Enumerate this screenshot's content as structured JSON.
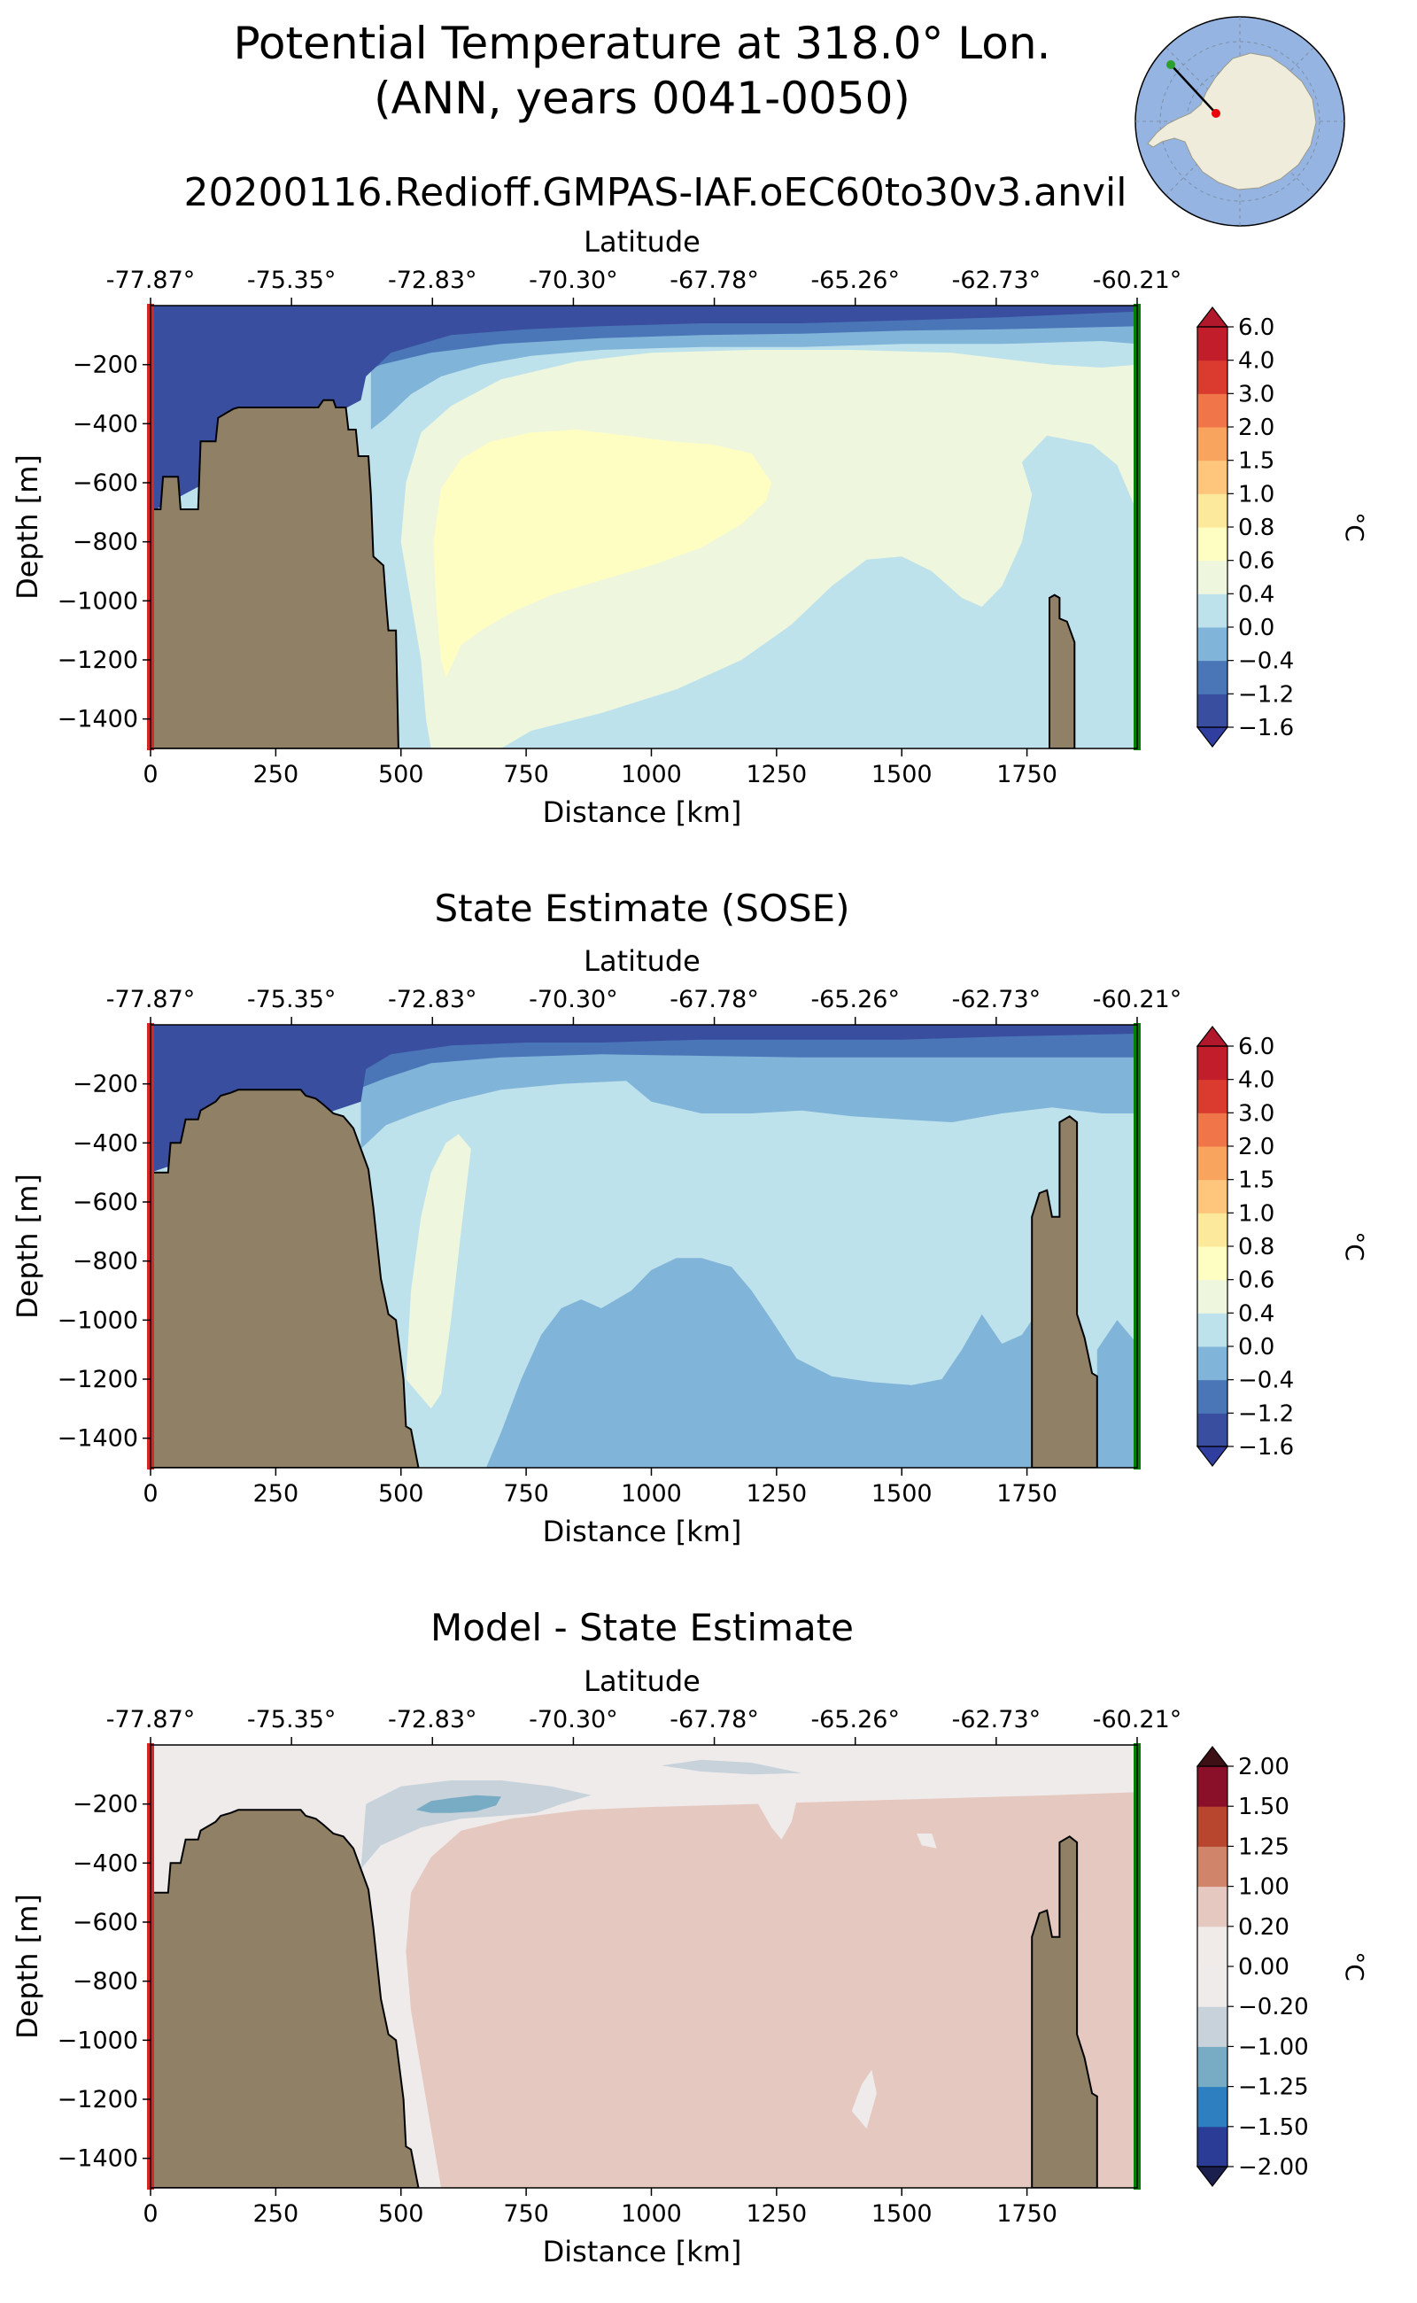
{
  "figure": {
    "title_line1": "Potential Temperature at 318.0° Lon.",
    "title_line2": "(ANN, years 0041-0050)",
    "run_name": "20200116.Redioff.GMPAS-IAF.oEC60to30v3.anvil"
  },
  "inset_map": {
    "region": "Antarctica",
    "projection": "south polar stereographic",
    "start_marker_color": "#2ca02c",
    "end_marker_color": "#e8000b"
  },
  "colors": {
    "land": "#8f8066",
    "left_edge": "#d62728",
    "right_edge": "#008000"
  },
  "chart_data": [
    {
      "type": "contourf",
      "title": "",
      "top_axis_label": "Latitude",
      "top_ticks": [
        "-77.87°",
        "-75.35°",
        "-72.83°",
        "-70.30°",
        "-67.78°",
        "-65.26°",
        "-62.73°",
        "-60.21°"
      ],
      "xlabel": "Distance [km]",
      "ylabel": "Depth [m]",
      "x_ticks": [
        0,
        250,
        500,
        750,
        1000,
        1250,
        1500,
        1750
      ],
      "y_ticks": [
        -200,
        -400,
        -600,
        -800,
        -1000,
        -1200,
        -1400
      ],
      "xlim": [
        0,
        1970
      ],
      "ylim": [
        -1500,
        0
      ],
      "colorbar": {
        "label": "°C",
        "levels": [
          "-1.6",
          "-1.2",
          "-0.4",
          "0.0",
          "0.4",
          "0.6",
          "0.8",
          "1.0",
          "1.5",
          "2.0",
          "3.0",
          "4.0",
          "6.0"
        ],
        "colors": [
          "#3a4ea0",
          "#4a76b8",
          "#80b4d8",
          "#bee2ec",
          "#eef6de",
          "#fffec2",
          "#fde99b",
          "#fdc67c",
          "#f9a45e",
          "#f07548",
          "#da3b2e",
          "#c11d2b"
        ],
        "under_color": "#303f9f",
        "over_color": "#b2182b"
      },
      "bottom_topography_km_m": [
        [
          0,
          -690
        ],
        [
          20,
          -690
        ],
        [
          25,
          -580
        ],
        [
          55,
          -580
        ],
        [
          60,
          -690
        ],
        [
          95,
          -690
        ],
        [
          100,
          -460
        ],
        [
          130,
          -460
        ],
        [
          135,
          -380
        ],
        [
          155,
          -360
        ],
        [
          165,
          -350
        ],
        [
          175,
          -345
        ],
        [
          335,
          -345
        ],
        [
          345,
          -320
        ],
        [
          365,
          -320
        ],
        [
          370,
          -345
        ],
        [
          390,
          -345
        ],
        [
          395,
          -420
        ],
        [
          410,
          -420
        ],
        [
          415,
          -510
        ],
        [
          435,
          -510
        ],
        [
          440,
          -640
        ],
        [
          445,
          -850
        ],
        [
          465,
          -880
        ],
        [
          470,
          -1000
        ],
        [
          475,
          -1100
        ],
        [
          490,
          -1100
        ],
        [
          495,
          -1500
        ]
      ],
      "seamount_km_m": [
        [
          1795,
          -1500
        ],
        [
          1795,
          -990
        ],
        [
          1805,
          -980
        ],
        [
          1815,
          -990
        ],
        [
          1815,
          -1060
        ],
        [
          1830,
          -1070
        ],
        [
          1845,
          -1140
        ],
        [
          1845,
          -1500
        ]
      ]
    },
    {
      "type": "contourf",
      "title": "State Estimate (SOSE)",
      "top_axis_label": "Latitude",
      "top_ticks": [
        "-77.87°",
        "-75.35°",
        "-72.83°",
        "-70.30°",
        "-67.78°",
        "-65.26°",
        "-62.73°",
        "-60.21°"
      ],
      "xlabel": "Distance [km]",
      "ylabel": "Depth [m]",
      "x_ticks": [
        0,
        250,
        500,
        750,
        1000,
        1250,
        1500,
        1750
      ],
      "y_ticks": [
        -200,
        -400,
        -600,
        -800,
        -1000,
        -1200,
        -1400
      ],
      "xlim": [
        0,
        1970
      ],
      "ylim": [
        -1500,
        0
      ],
      "colorbar": {
        "label": "°C",
        "levels": [
          "-1.6",
          "-1.2",
          "-0.4",
          "0.0",
          "0.4",
          "0.6",
          "0.8",
          "1.0",
          "1.5",
          "2.0",
          "3.0",
          "4.0",
          "6.0"
        ],
        "colors": [
          "#3a4ea0",
          "#4a76b8",
          "#80b4d8",
          "#bee2ec",
          "#eef6de",
          "#fffec2",
          "#fde99b",
          "#fdc67c",
          "#f9a45e",
          "#f07548",
          "#da3b2e",
          "#c11d2b"
        ],
        "under_color": "#303f9f",
        "over_color": "#b2182b"
      },
      "bottom_topography_km_m": [
        [
          0,
          -500
        ],
        [
          35,
          -500
        ],
        [
          40,
          -400
        ],
        [
          60,
          -400
        ],
        [
          70,
          -320
        ],
        [
          95,
          -320
        ],
        [
          100,
          -290
        ],
        [
          130,
          -260
        ],
        [
          140,
          -240
        ],
        [
          160,
          -230
        ],
        [
          175,
          -220
        ],
        [
          300,
          -220
        ],
        [
          310,
          -240
        ],
        [
          330,
          -250
        ],
        [
          345,
          -270
        ],
        [
          365,
          -300
        ],
        [
          385,
          -310
        ],
        [
          405,
          -350
        ],
        [
          420,
          -420
        ],
        [
          435,
          -490
        ],
        [
          445,
          -620
        ],
        [
          460,
          -860
        ],
        [
          475,
          -980
        ],
        [
          490,
          -1000
        ],
        [
          505,
          -1200
        ],
        [
          510,
          -1360
        ],
        [
          520,
          -1370
        ],
        [
          535,
          -1500
        ]
      ],
      "seamount_km_m": [
        [
          1760,
          -1500
        ],
        [
          1760,
          -650
        ],
        [
          1775,
          -570
        ],
        [
          1790,
          -560
        ],
        [
          1800,
          -650
        ],
        [
          1815,
          -650
        ],
        [
          1815,
          -330
        ],
        [
          1835,
          -310
        ],
        [
          1850,
          -330
        ],
        [
          1850,
          -980
        ],
        [
          1865,
          -1060
        ],
        [
          1880,
          -1180
        ],
        [
          1890,
          -1190
        ],
        [
          1890,
          -1500
        ]
      ]
    },
    {
      "type": "contourf",
      "title": "Model - State Estimate",
      "top_axis_label": "Latitude",
      "top_ticks": [
        "-77.87°",
        "-75.35°",
        "-72.83°",
        "-70.30°",
        "-67.78°",
        "-65.26°",
        "-62.73°",
        "-60.21°"
      ],
      "xlabel": "Distance [km]",
      "ylabel": "Depth [m]",
      "x_ticks": [
        0,
        250,
        500,
        750,
        1000,
        1250,
        1500,
        1750
      ],
      "y_ticks": [
        -200,
        -400,
        -600,
        -800,
        -1000,
        -1200,
        -1400
      ],
      "xlim": [
        0,
        1970
      ],
      "ylim": [
        -1500,
        0
      ],
      "colorbar": {
        "label": "°C",
        "levels": [
          "-2.00",
          "-1.50",
          "-1.25",
          "-1.00",
          "-0.20",
          "0.00",
          "0.20",
          "1.00",
          "1.25",
          "1.50",
          "2.00"
        ],
        "colors": [
          "#2b3c96",
          "#2e7fbf",
          "#78abc4",
          "#c7d2da",
          "#efebeb",
          "#f0ebe9",
          "#e5c8bf",
          "#d0856b",
          "#b8462e",
          "#8a1029"
        ],
        "under_color": "#1a1f4d",
        "over_color": "#3d1016"
      },
      "bottom_topography_km_m": [
        [
          0,
          -500
        ],
        [
          35,
          -500
        ],
        [
          40,
          -400
        ],
        [
          60,
          -400
        ],
        [
          70,
          -320
        ],
        [
          95,
          -320
        ],
        [
          100,
          -290
        ],
        [
          130,
          -260
        ],
        [
          140,
          -240
        ],
        [
          160,
          -230
        ],
        [
          175,
          -220
        ],
        [
          300,
          -220
        ],
        [
          310,
          -240
        ],
        [
          330,
          -250
        ],
        [
          345,
          -270
        ],
        [
          365,
          -300
        ],
        [
          385,
          -310
        ],
        [
          405,
          -350
        ],
        [
          420,
          -420
        ],
        [
          435,
          -490
        ],
        [
          445,
          -620
        ],
        [
          460,
          -860
        ],
        [
          475,
          -980
        ],
        [
          490,
          -1000
        ],
        [
          505,
          -1200
        ],
        [
          510,
          -1360
        ],
        [
          520,
          -1370
        ],
        [
          535,
          -1500
        ]
      ],
      "seamount_km_m": [
        [
          1760,
          -1500
        ],
        [
          1760,
          -650
        ],
        [
          1775,
          -570
        ],
        [
          1790,
          -560
        ],
        [
          1800,
          -650
        ],
        [
          1815,
          -650
        ],
        [
          1815,
          -330
        ],
        [
          1835,
          -310
        ],
        [
          1850,
          -330
        ],
        [
          1850,
          -980
        ],
        [
          1865,
          -1060
        ],
        [
          1880,
          -1180
        ],
        [
          1890,
          -1190
        ],
        [
          1890,
          -1500
        ]
      ]
    }
  ]
}
